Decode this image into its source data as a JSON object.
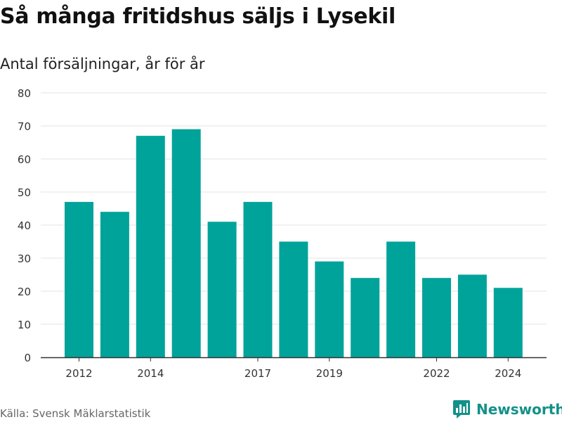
{
  "header": {
    "title": "Så många fritidshus säljs i Lysekil",
    "subtitle": "Antal försäljningar, år för år"
  },
  "footer": {
    "source": "Källa: Svensk Mäklarstatistik",
    "brand": "Newsworthy",
    "brand_icon": "bar-chart-logo-icon",
    "brand_color": "#12918a"
  },
  "chart_data": {
    "type": "bar",
    "x": [
      2012,
      2013,
      2014,
      2015,
      2016,
      2017,
      2018,
      2019,
      2020,
      2021,
      2022,
      2023,
      2024
    ],
    "values": [
      47,
      44,
      67,
      69,
      41,
      47,
      35,
      29,
      24,
      35,
      24,
      25,
      21
    ],
    "xticks": [
      2012,
      2014,
      2017,
      2019,
      2022,
      2024
    ],
    "yticks": [
      0,
      10,
      20,
      30,
      40,
      50,
      60,
      70,
      80
    ],
    "ylim": [
      0,
      80
    ],
    "grid": true,
    "bar_color": "#00a39a",
    "title": "Så många fritidshus säljs i Lysekil",
    "subtitle": "Antal försäljningar, år för år",
    "xlabel": "",
    "ylabel": ""
  }
}
